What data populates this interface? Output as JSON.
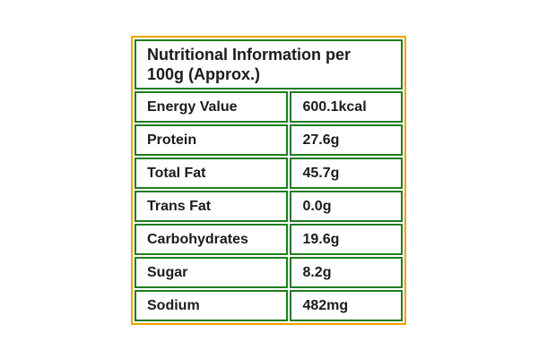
{
  "table": {
    "header": "Nutritional Information per 100g (Approx.)",
    "rows": [
      {
        "label": "Energy Value",
        "value": "600.1kcal"
      },
      {
        "label": "Protein",
        "value": "27.6g"
      },
      {
        "label": "Total Fat",
        "value": "45.7g"
      },
      {
        "label": "Trans Fat",
        "value": "0.0g"
      },
      {
        "label": "Carbohydrates",
        "value": "19.6g"
      },
      {
        "label": "Sugar",
        "value": "8.2g"
      },
      {
        "label": "Sodium",
        "value": "482mg"
      }
    ],
    "colors": {
      "outer_border": "#F0A202",
      "inner_border": "#1E7D1E",
      "text": "#1B1B1B",
      "background": "#FFFFFF"
    }
  }
}
